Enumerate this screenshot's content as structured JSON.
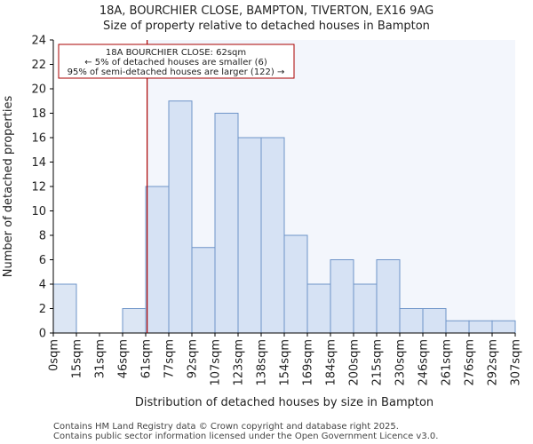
{
  "chart_data": {
    "type": "bar",
    "title": "18A, BOURCHIER CLOSE, BAMPTON, TIVERTON, EX16 9AG",
    "subtitle": "Size of property relative to detached houses in Bampton",
    "xlabel": "Distribution of detached houses by size in Bampton",
    "ylabel": "Number of detached properties",
    "ylim": [
      0,
      24
    ],
    "yticks": [
      0,
      2,
      4,
      6,
      8,
      10,
      12,
      14,
      16,
      18,
      20,
      22,
      24
    ],
    "bin_edges": [
      0,
      15,
      31,
      46,
      61,
      77,
      92,
      107,
      123,
      138,
      154,
      169,
      184,
      200,
      215,
      230,
      246,
      261,
      276,
      292,
      307
    ],
    "x_tick_labels": [
      "0sqm",
      "15sqm",
      "31sqm",
      "46sqm",
      "61sqm",
      "77sqm",
      "92sqm",
      "107sqm",
      "123sqm",
      "138sqm",
      "154sqm",
      "169sqm",
      "184sqm",
      "200sqm",
      "215sqm",
      "230sqm",
      "246sqm",
      "261sqm",
      "276sqm",
      "292sqm",
      "307sqm"
    ],
    "values": [
      4,
      0,
      0,
      2,
      12,
      19,
      7,
      18,
      16,
      16,
      8,
      4,
      6,
      4,
      6,
      2,
      2,
      1,
      1,
      1
    ],
    "property_marker": {
      "value": 62,
      "label_lines": [
        "18A BOURCHIER CLOSE: 62sqm",
        "← 5% of detached houses are smaller (6)",
        "95% of semi-detached houses are larger (122) →"
      ]
    },
    "grid": false
  },
  "colors": {
    "bar_fill_before": "#dce6f4",
    "bar_fill_after": "#d6e2f4",
    "bar_edge": "#6e94c8",
    "marker_line": "#aa0000",
    "annotation_border": "#aa0000"
  },
  "footer": {
    "line1": "Contains HM Land Registry data © Crown copyright and database right 2025.",
    "line2": "Contains public sector information licensed under the Open Government Licence v3.0."
  }
}
